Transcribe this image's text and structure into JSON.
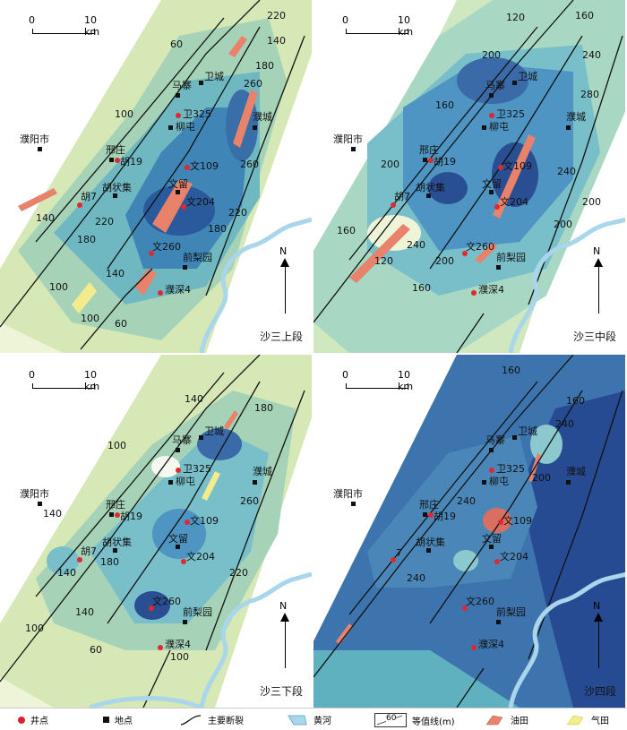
{
  "scale_bar": {
    "zero": "0",
    "ten": "10 km"
  },
  "north_label": "N",
  "panels": [
    {
      "title": "沙三上段",
      "contours": [
        "60",
        "140",
        "180",
        "220",
        "100",
        "260",
        "220",
        "180",
        "180",
        "140",
        "220",
        "100",
        "100",
        "60",
        "140",
        "260"
      ]
    },
    {
      "title": "沙三中段",
      "contours": [
        "120",
        "160",
        "200",
        "240",
        "160",
        "200",
        "280",
        "200",
        "240",
        "200",
        "160",
        "120",
        "240",
        "200",
        "160"
      ]
    },
    {
      "title": "沙三下段",
      "contours": [
        "140",
        "180",
        "100",
        "260",
        "140",
        "140",
        "180",
        "220",
        "140",
        "100",
        "60",
        "100"
      ]
    },
    {
      "title": "沙四段",
      "contours": [
        "160",
        "160",
        "240",
        "200",
        "240",
        "240"
      ]
    }
  ],
  "places": {
    "puyang": "濮阳市",
    "majia": "马寨",
    "weicheng": "卫城",
    "liutun": "柳屯",
    "xingzhuang": "邢庄",
    "huzhuangji": "胡状集",
    "wenliu": "文留",
    "puscheng": "濮城",
    "qianliyuan": "前梨园"
  },
  "wells": {
    "wei325": "卫325",
    "hu19": "胡19",
    "wen109": "文109",
    "hu7": "胡7",
    "wen204": "文204",
    "wen260": "文260",
    "pushen4": "濮深4",
    "hu7_short": "7"
  },
  "legend": {
    "well": "井点",
    "place": "地点",
    "fault": "主要断裂",
    "river": "黄河",
    "contour": "等值线(m)",
    "contour_sample": "60",
    "oilfield": "油田",
    "gasfield": "气田"
  },
  "colors": {
    "well": "#e0282e",
    "oil": "#e8826a",
    "gas": "#f3ec8c",
    "river": "#a9d6ea"
  }
}
